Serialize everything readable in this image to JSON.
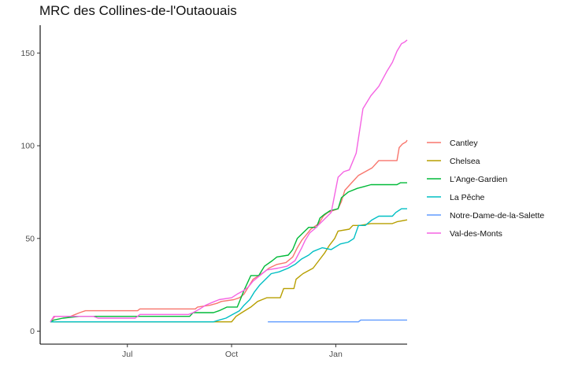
{
  "chart_data": {
    "type": "line",
    "title": "MRC des Collines-de-l'Outaouais",
    "xlabel": "",
    "ylabel": "",
    "x_axis": {
      "type": "date",
      "range": [
        "2020-04-15",
        "2021-03-05"
      ],
      "ticks": [
        {
          "label": "Jul",
          "date": "2020-07-01"
        },
        {
          "label": "Oct",
          "date": "2020-10-01"
        },
        {
          "label": "Jan",
          "date": "2021-01-01"
        }
      ]
    },
    "y_axis": {
      "range": [
        -7,
        165
      ],
      "ticks": [
        0,
        50,
        100,
        150
      ]
    },
    "grid": false,
    "legend_position": "right",
    "series": [
      {
        "name": "Cantley",
        "color": "#F8766D",
        "points": [
          [
            "2020-04-24",
            5
          ],
          [
            "2020-04-28",
            8
          ],
          [
            "2020-05-12",
            8
          ],
          [
            "2020-05-16",
            9
          ],
          [
            "2020-05-20",
            10
          ],
          [
            "2020-05-25",
            11
          ],
          [
            "2020-07-10",
            11
          ],
          [
            "2020-07-12",
            12
          ],
          [
            "2020-08-30",
            12
          ],
          [
            "2020-09-01",
            13
          ],
          [
            "2020-09-12",
            14
          ],
          [
            "2020-09-18",
            15
          ],
          [
            "2020-09-22",
            16
          ],
          [
            "2020-10-03",
            17
          ],
          [
            "2020-10-08",
            18
          ],
          [
            "2020-10-12",
            20
          ],
          [
            "2020-10-16",
            24
          ],
          [
            "2020-10-20",
            28
          ],
          [
            "2020-10-25",
            30
          ],
          [
            "2020-10-30",
            32
          ],
          [
            "2020-11-03",
            34
          ],
          [
            "2020-11-10",
            36
          ],
          [
            "2020-11-18",
            37
          ],
          [
            "2020-11-24",
            40
          ],
          [
            "2020-11-28",
            45
          ],
          [
            "2020-12-02",
            49
          ],
          [
            "2020-12-06",
            52
          ],
          [
            "2020-12-10",
            55
          ],
          [
            "2020-12-17",
            58
          ],
          [
            "2020-12-21",
            62
          ],
          [
            "2020-12-25",
            64
          ],
          [
            "2021-01-03",
            66
          ],
          [
            "2021-01-06",
            70
          ],
          [
            "2021-01-09",
            76
          ],
          [
            "2021-01-15",
            80
          ],
          [
            "2021-01-21",
            84
          ],
          [
            "2021-01-27",
            86
          ],
          [
            "2021-02-02",
            88
          ],
          [
            "2021-02-08",
            92
          ],
          [
            "2021-02-24",
            92
          ],
          [
            "2021-02-26",
            99
          ],
          [
            "2021-03-01",
            101
          ],
          [
            "2021-03-04",
            102
          ],
          [
            "2021-03-05",
            103
          ]
        ]
      },
      {
        "name": "Chelsea",
        "color": "#B79F00",
        "points": [
          [
            "2020-04-24",
            5
          ],
          [
            "2020-09-22",
            5
          ],
          [
            "2020-10-01",
            5
          ],
          [
            "2020-10-05",
            8
          ],
          [
            "2020-10-10",
            10
          ],
          [
            "2020-10-18",
            13
          ],
          [
            "2020-10-24",
            16
          ],
          [
            "2020-11-01",
            18
          ],
          [
            "2020-11-13",
            18
          ],
          [
            "2020-11-16",
            23
          ],
          [
            "2020-11-25",
            23
          ],
          [
            "2020-11-27",
            28
          ],
          [
            "2020-12-03",
            31
          ],
          [
            "2020-12-12",
            34
          ],
          [
            "2020-12-17",
            38
          ],
          [
            "2020-12-22",
            42
          ],
          [
            "2020-12-26",
            46
          ],
          [
            "2020-12-31",
            50
          ],
          [
            "2021-01-03",
            54
          ],
          [
            "2021-01-13",
            55
          ],
          [
            "2021-01-16",
            57
          ],
          [
            "2021-01-22",
            57
          ],
          [
            "2021-02-01",
            58
          ],
          [
            "2021-02-20",
            58
          ],
          [
            "2021-02-24",
            59
          ],
          [
            "2021-03-05",
            60
          ]
        ]
      },
      {
        "name": "L'Ange-Gardien",
        "color": "#00BA38",
        "points": [
          [
            "2020-04-24",
            5
          ],
          [
            "2020-04-27",
            6
          ],
          [
            "2020-05-05",
            7
          ],
          [
            "2020-05-20",
            8
          ],
          [
            "2020-08-25",
            8
          ],
          [
            "2020-08-28",
            10
          ],
          [
            "2020-09-15",
            10
          ],
          [
            "2020-09-20",
            11
          ],
          [
            "2020-09-27",
            13
          ],
          [
            "2020-10-06",
            13
          ],
          [
            "2020-10-12",
            22
          ],
          [
            "2020-10-18",
            30
          ],
          [
            "2020-10-25",
            30
          ],
          [
            "2020-10-30",
            35
          ],
          [
            "2020-11-06",
            38
          ],
          [
            "2020-11-10",
            40
          ],
          [
            "2020-11-20",
            41
          ],
          [
            "2020-11-24",
            44
          ],
          [
            "2020-11-28",
            50
          ],
          [
            "2020-12-03",
            53
          ],
          [
            "2020-12-08",
            56
          ],
          [
            "2020-12-15",
            56
          ],
          [
            "2020-12-18",
            61
          ],
          [
            "2020-12-22",
            63
          ],
          [
            "2020-12-27",
            65
          ],
          [
            "2021-01-03",
            66
          ],
          [
            "2021-01-06",
            72
          ],
          [
            "2021-01-12",
            75
          ],
          [
            "2021-01-20",
            77
          ],
          [
            "2021-01-26",
            78
          ],
          [
            "2021-02-01",
            79
          ],
          [
            "2021-02-24",
            79
          ],
          [
            "2021-02-27",
            80
          ],
          [
            "2021-03-05",
            80
          ]
        ]
      },
      {
        "name": "La Pêche",
        "color": "#00BFC4",
        "points": [
          [
            "2020-04-24",
            5
          ],
          [
            "2020-09-15",
            5
          ],
          [
            "2020-09-20",
            6
          ],
          [
            "2020-09-26",
            7
          ],
          [
            "2020-10-02",
            9
          ],
          [
            "2020-10-08",
            11
          ],
          [
            "2020-10-12",
            14
          ],
          [
            "2020-10-17",
            17
          ],
          [
            "2020-10-21",
            21
          ],
          [
            "2020-10-26",
            25
          ],
          [
            "2020-10-31",
            28
          ],
          [
            "2020-11-05",
            31
          ],
          [
            "2020-11-12",
            32
          ],
          [
            "2020-11-20",
            34
          ],
          [
            "2020-11-26",
            36
          ],
          [
            "2020-12-02",
            39
          ],
          [
            "2020-12-08",
            41
          ],
          [
            "2020-12-12",
            43
          ],
          [
            "2020-12-20",
            45
          ],
          [
            "2020-12-28",
            44
          ],
          [
            "2021-01-05",
            47
          ],
          [
            "2021-01-12",
            48
          ],
          [
            "2021-01-17",
            50
          ],
          [
            "2021-01-21",
            57
          ],
          [
            "2021-01-27",
            57
          ],
          [
            "2021-02-02",
            60
          ],
          [
            "2021-02-08",
            62
          ],
          [
            "2021-02-20",
            62
          ],
          [
            "2021-02-23",
            64
          ],
          [
            "2021-02-28",
            66
          ],
          [
            "2021-03-05",
            66
          ]
        ]
      },
      {
        "name": "Notre-Dame-de-la-Salette",
        "color": "#619CFF",
        "points": [
          [
            "2020-11-02",
            5
          ],
          [
            "2021-01-21",
            5
          ],
          [
            "2021-01-23",
            6
          ],
          [
            "2021-03-05",
            6
          ]
        ]
      },
      {
        "name": "Val-des-Monts",
        "color": "#F564E3",
        "points": [
          [
            "2020-04-24",
            5
          ],
          [
            "2020-04-27",
            8
          ],
          [
            "2020-06-01",
            8
          ],
          [
            "2020-06-05",
            7
          ],
          [
            "2020-07-08",
            7
          ],
          [
            "2020-07-12",
            9
          ],
          [
            "2020-08-24",
            9
          ],
          [
            "2020-08-28",
            10
          ],
          [
            "2020-09-03",
            12
          ],
          [
            "2020-09-08",
            14
          ],
          [
            "2020-09-12",
            15
          ],
          [
            "2020-09-16",
            16
          ],
          [
            "2020-09-20",
            17
          ],
          [
            "2020-10-01",
            18
          ],
          [
            "2020-10-06",
            20
          ],
          [
            "2020-10-12",
            22
          ],
          [
            "2020-10-16",
            24
          ],
          [
            "2020-10-20",
            27
          ],
          [
            "2020-10-26",
            30
          ],
          [
            "2020-11-01",
            33
          ],
          [
            "2020-11-11",
            34
          ],
          [
            "2020-11-19",
            35
          ],
          [
            "2020-11-26",
            38
          ],
          [
            "2020-12-02",
            45
          ],
          [
            "2020-12-05",
            49
          ],
          [
            "2020-12-09",
            53
          ],
          [
            "2020-12-13",
            55
          ],
          [
            "2020-12-18",
            58
          ],
          [
            "2020-12-23",
            61
          ],
          [
            "2020-12-28",
            64
          ],
          [
            "2021-01-03",
            83
          ],
          [
            "2021-01-08",
            86
          ],
          [
            "2021-01-13",
            87
          ],
          [
            "2021-01-19",
            96
          ],
          [
            "2021-01-25",
            120
          ],
          [
            "2021-02-01",
            127
          ],
          [
            "2021-02-08",
            132
          ],
          [
            "2021-02-15",
            140
          ],
          [
            "2021-02-20",
            145
          ],
          [
            "2021-02-24",
            151
          ],
          [
            "2021-02-28",
            155
          ],
          [
            "2021-03-03",
            156
          ],
          [
            "2021-03-05",
            157
          ]
        ]
      }
    ]
  }
}
